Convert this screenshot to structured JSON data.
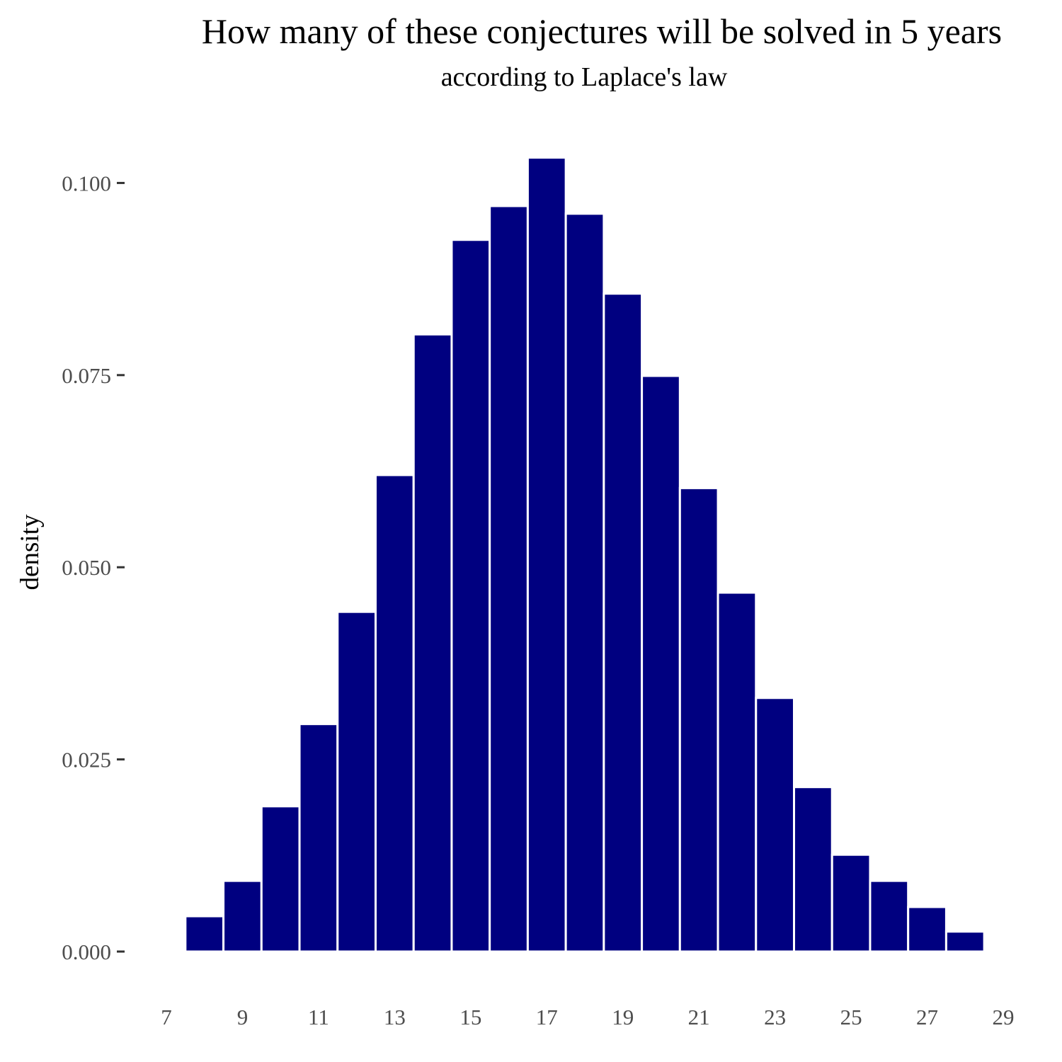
{
  "chart_data": {
    "type": "bar",
    "title": "How many of these conjectures will be solved in 5 years",
    "subtitle": "according to Laplace's law",
    "xlabel": "",
    "ylabel": "density",
    "categories": [
      8,
      9,
      10,
      11,
      12,
      13,
      14,
      15,
      16,
      17,
      18,
      19,
      20,
      21,
      22,
      23,
      24,
      25,
      26,
      27,
      28
    ],
    "values": [
      0.0046,
      0.0092,
      0.0189,
      0.0296,
      0.0442,
      0.062,
      0.0803,
      0.0926,
      0.097,
      0.1033,
      0.096,
      0.0856,
      0.0749,
      0.0603,
      0.0467,
      0.033,
      0.0214,
      0.0126,
      0.0092,
      0.0058,
      0.0026
    ],
    "xlim": [
      7,
      29
    ],
    "ylim": [
      0,
      0.104
    ],
    "xticks": [
      "7",
      "9",
      "11",
      "13",
      "15",
      "17",
      "19",
      "21",
      "23",
      "25",
      "27",
      "29"
    ],
    "yticks": [
      "0.000",
      "0.025",
      "0.050",
      "0.075",
      "0.100"
    ],
    "bar_color": "#000080",
    "bar_edge_color": "#ffffff",
    "grid": false,
    "legend": "none"
  }
}
